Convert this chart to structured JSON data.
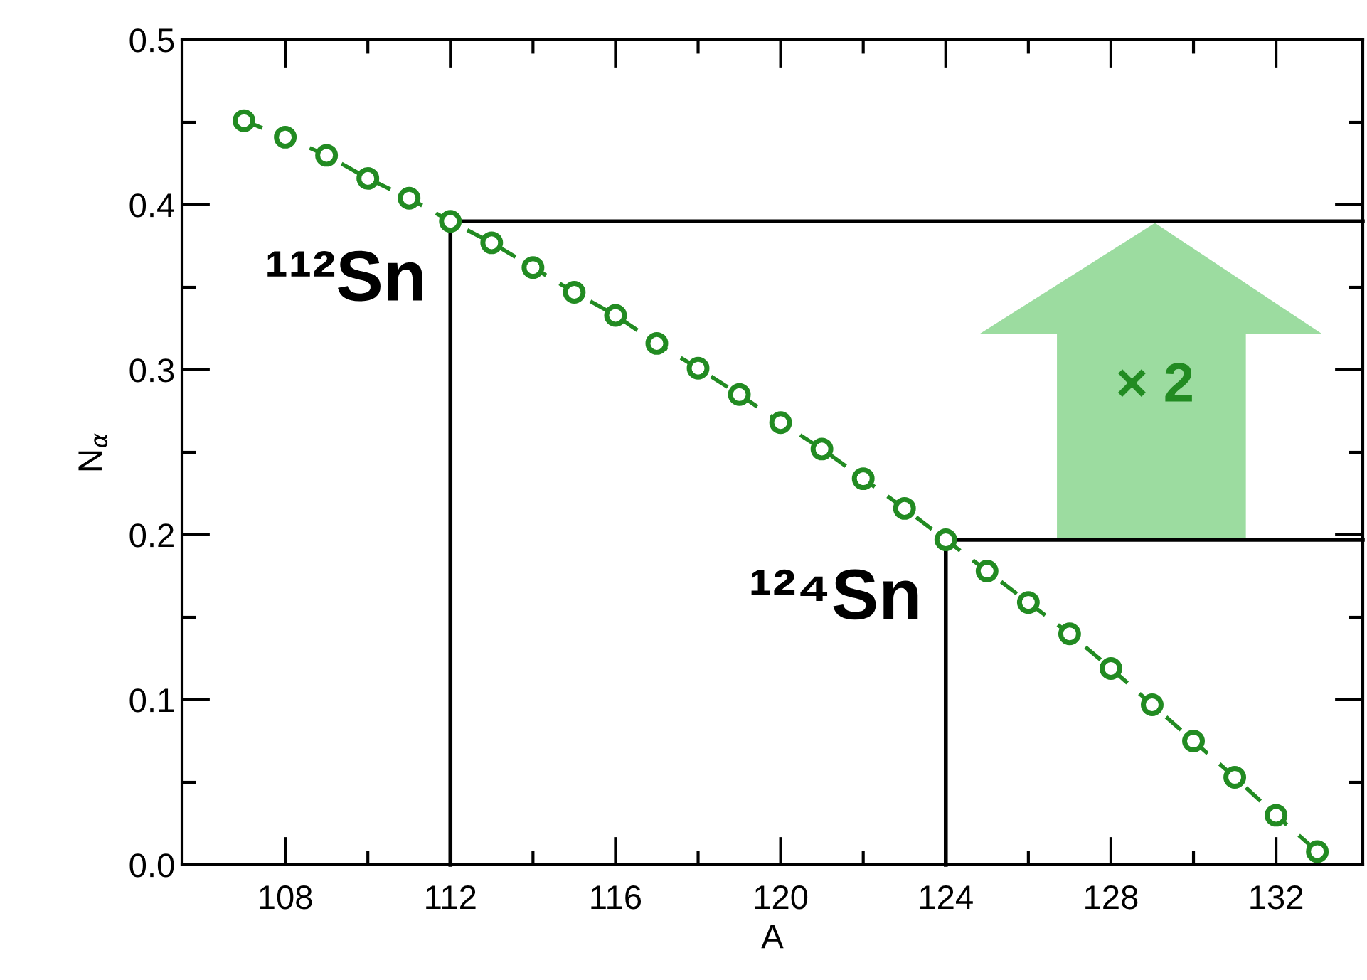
{
  "chart_data": {
    "type": "line",
    "xlabel": "A",
    "ylabel": "N$_{α}$",
    "xlim": [
      105.5,
      134.1
    ],
    "ylim": [
      0,
      0.5
    ],
    "xticks": [
      108,
      112,
      116,
      120,
      124,
      128,
      132
    ],
    "yticks": [
      {
        "value": 0,
        "label": "0.0"
      },
      0.1,
      0.2,
      0.3,
      0.4,
      0.5
    ],
    "grid": false,
    "series": [
      {
        "color": "#228b22",
        "marker": "circle",
        "line_style": "dashed",
        "x": [
          107,
          108,
          109,
          110,
          111,
          112,
          113,
          114,
          115,
          116,
          117,
          118,
          119,
          120,
          121,
          122,
          123,
          124,
          125,
          126,
          127,
          128,
          129,
          130,
          131,
          132,
          133
        ],
        "values": [
          0.451,
          0.441,
          0.43,
          0.416,
          0.404,
          0.39,
          0.377,
          0.362,
          0.347,
          0.333,
          0.316,
          0.301,
          0.285,
          0.268,
          0.252,
          0.234,
          0.216,
          0.197,
          0.178,
          0.159,
          0.14,
          0.119,
          0.097,
          0.075,
          0.053,
          0.03,
          0.008
        ]
      },
      {
        "color": "#000000",
        "marker": "none",
        "line_style": "solid",
        "x": [
          112,
          112,
          134.1
        ],
        "values": [
          0,
          0.39,
          0.39
        ]
      },
      {
        "color": "#000000",
        "marker": "none",
        "line_style": "solid",
        "x": [
          124,
          124,
          134.1
        ],
        "values": [
          0,
          0.197,
          0.197
        ]
      }
    ],
    "annotations": [
      {
        "text": "¹¹²Sn",
        "x": 112,
        "y": 0.39
      },
      {
        "text": "¹²⁴Sn",
        "x": 124,
        "y": 0.197
      },
      "× 2"
    ]
  }
}
